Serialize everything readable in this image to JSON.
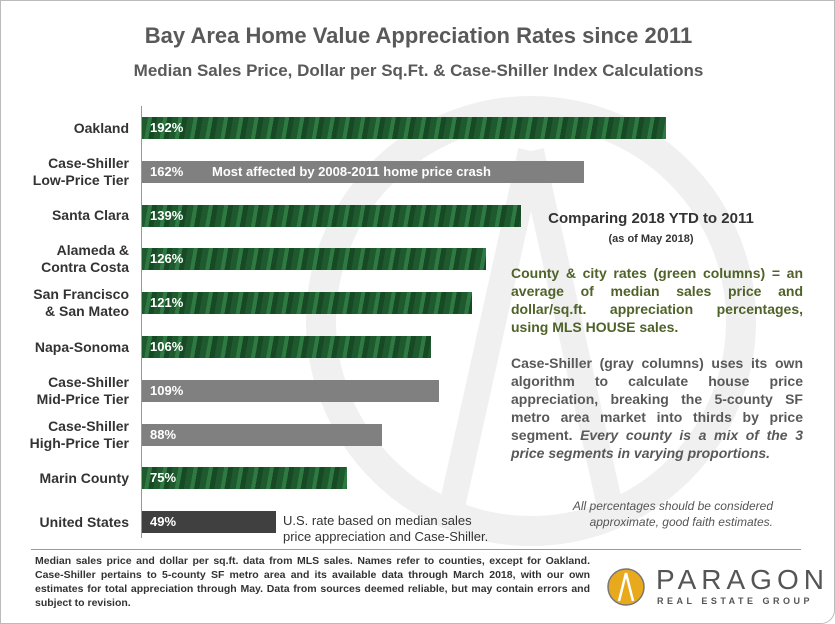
{
  "chart_data": {
    "type": "bar",
    "orientation": "horizontal",
    "title": "Bay Area Home Value Appreciation Rates since 2011",
    "subtitle": "Median Sales Price, Dollar per Sq.Ft. & Case-Shiller Index Calculations",
    "categories": [
      "Oakland",
      "Case-Shiller Low-Price Tier",
      "Santa Clara",
      "Alameda & Contra Costa",
      "San Francisco & San Mateo",
      "Napa-Sonoma",
      "Case-Shiller Mid-Price Tier",
      "Case-Shiller High-Price Tier",
      "Marin County",
      "United States"
    ],
    "label_lines": [
      [
        "Oakland"
      ],
      [
        "Case-Shiller",
        "Low-Price Tier"
      ],
      [
        "Santa Clara"
      ],
      [
        "Alameda &",
        "Contra Costa"
      ],
      [
        "San Francisco",
        "& San Mateo"
      ],
      [
        "Napa-Sonoma"
      ],
      [
        "Case-Shiller",
        "Mid-Price Tier"
      ],
      [
        "Case-Shiller",
        "High-Price Tier"
      ],
      [
        "Marin County"
      ],
      [
        "United States"
      ]
    ],
    "values": [
      192,
      162,
      139,
      126,
      121,
      106,
      109,
      88,
      75,
      49
    ],
    "value_labels": [
      "192%",
      "162%",
      "139%",
      "126%",
      "121%",
      "106%",
      "109%",
      "88%",
      "75%",
      "49%"
    ],
    "bar_kinds": [
      "green",
      "gray",
      "green",
      "green",
      "green",
      "green",
      "gray",
      "gray",
      "green",
      "dark"
    ],
    "colors": {
      "green": "#2e6b3a",
      "gray": "#808080",
      "dark": "#404040",
      "county_text": "#4f6228"
    },
    "grid": false,
    "annotations": {
      "low_tier": "Most affected by 2008-2011 home price crash",
      "us": [
        "U.S. rate based on median sales",
        "price appreciation and Case-Shiller."
      ]
    }
  },
  "side": {
    "compare": "Comparing 2018 YTD to 2011",
    "compare_sub": "(as of May 2018)",
    "county": "County & city rates (green columns) = an average of median sales price and dollar/sq.ft. appreciation percentages, using MLS HOUSE sales.",
    "cs_plain": "Case-Shiller (gray columns) uses its own algorithm to calculate house price appreciation, breaking the 5-county SF metro area market into thirds by price segment. ",
    "cs_italic": "Every county is a mix of the 3 price segments in varying proportions.",
    "approx": "All percentages should be considered approximate, good faith estimates."
  },
  "footer": "Median sales price and dollar per sq.ft. data from MLS sales. Names refer to counties, except for Oakland. Case-Shiller pertains to 5-county SF metro area and its available data through March 2018, with our own estimates for total appreciation through May. Data from sources deemed reliable, but may contain errors and subject to revision.",
  "logo": {
    "name": "PARAGON",
    "tagline": "REAL ESTATE GROUP"
  }
}
